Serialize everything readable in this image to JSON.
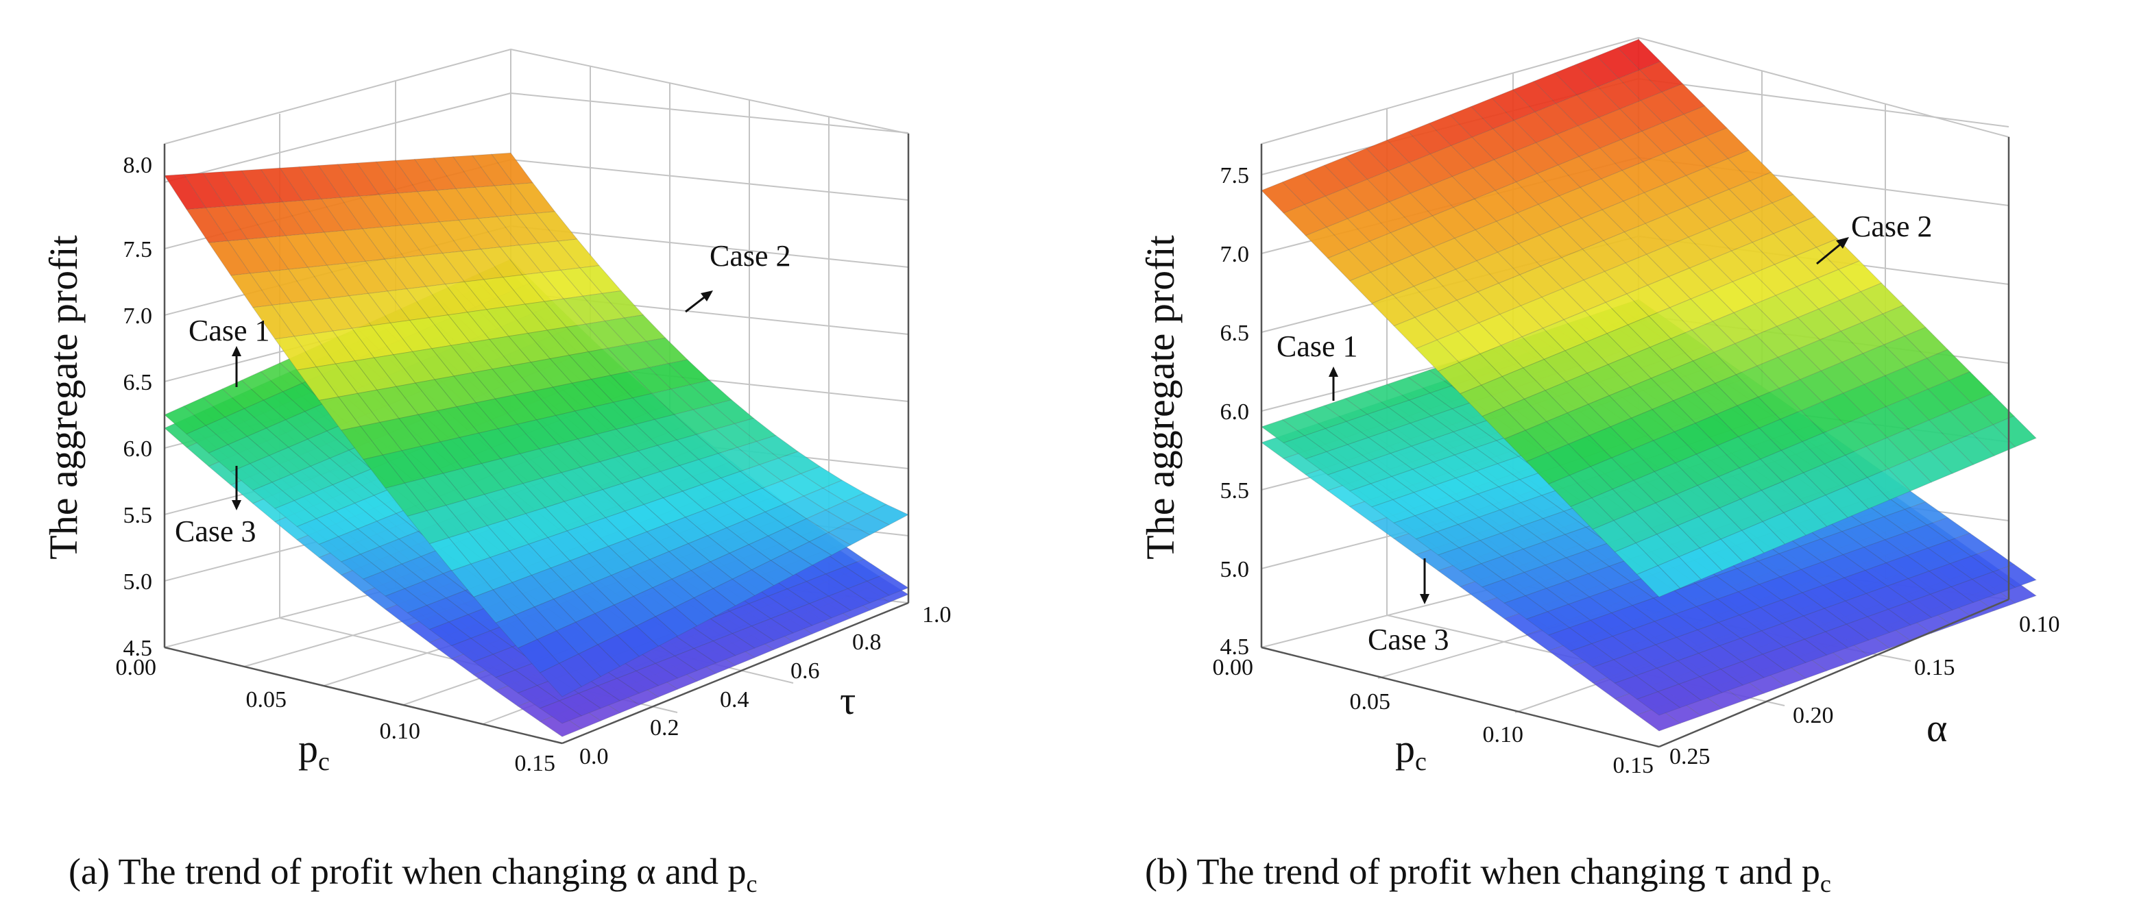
{
  "colors": {
    "cmap": [
      "#7a3fd6",
      "#3a5bf0",
      "#2fd8ec",
      "#28cf4a",
      "#e8ea2a",
      "#f39a1c",
      "#e81f1f"
    ]
  },
  "chart_data": [
    {
      "type": "surface3d",
      "caption_prefix": "(a) The trend of profit when changing α and p",
      "caption_sub": "c",
      "zlabel": "The aggregate profit",
      "xlabel_main": "p",
      "xlabel_sub": "c",
      "ylabel": "τ",
      "xlim": [
        0.0,
        0.15
      ],
      "ylim": [
        0.0,
        1.0
      ],
      "zlim": [
        4.5,
        8.0
      ],
      "x_ticks": [
        "0.00",
        "0.05",
        "0.10",
        "0.15"
      ],
      "y_ticks": [
        "0.0",
        "0.2",
        "0.4",
        "0.6",
        "0.8",
        "1.0"
      ],
      "z_ticks": [
        "4.5",
        "5.0",
        "5.5",
        "6.0",
        "6.5",
        "7.0",
        "7.5",
        "8.0"
      ],
      "series": [
        {
          "name": "Case 2",
          "corners": {
            "x0y0": 8.05,
            "x1y0": 4.85,
            "x0y1": 7.55,
            "x1y1": 5.55
          },
          "curvature": -0.35
        },
        {
          "name": "Case 1",
          "corners": {
            "x0y0": 6.25,
            "x1y0": 4.65,
            "x0y1": 6.75,
            "x1y1": 5.0
          },
          "curvature": -0.15
        },
        {
          "name": "Case 3",
          "corners": {
            "x0y0": 6.15,
            "x1y0": 4.55,
            "x0y1": 6.65,
            "x1y1": 4.95
          },
          "curvature": -0.15
        }
      ],
      "annotations": [
        "Case 2",
        "Case 1",
        "Case 3"
      ]
    },
    {
      "type": "surface3d",
      "caption_prefix": "(b) The trend of profit when changing τ and p",
      "caption_sub": "c",
      "zlabel": "The aggregate profit",
      "xlabel_main": "p",
      "xlabel_sub": "c",
      "ylabel": "α",
      "xlim": [
        0.0,
        0.15
      ],
      "ylim": [
        0.25,
        0.1
      ],
      "zlim": [
        4.5,
        7.7
      ],
      "x_ticks": [
        "0.00",
        "0.05",
        "0.10",
        "0.15"
      ],
      "y_ticks": [
        "0.25",
        "0.20",
        "0.15",
        "0.10"
      ],
      "z_ticks": [
        "4.5",
        "5.0",
        "5.5",
        "6.0",
        "6.5",
        "7.0",
        "7.5"
      ],
      "series": [
        {
          "name": "Case 2",
          "corners": {
            "x0y0": 7.4,
            "x1y0": 5.45,
            "x0y1": 7.75,
            "x1y1": 5.85
          },
          "curvature": 0
        },
        {
          "name": "Case 1",
          "corners": {
            "x0y0": 5.9,
            "x1y0": 4.7,
            "x0y1": 6.1,
            "x1y1": 4.95
          },
          "curvature": 0
        },
        {
          "name": "Case 3",
          "corners": {
            "x0y0": 5.8,
            "x1y0": 4.6,
            "x0y1": 6.0,
            "x1y1": 4.85
          },
          "curvature": 0
        }
      ],
      "annotations": [
        "Case 2",
        "Case 1",
        "Case 3"
      ]
    }
  ]
}
